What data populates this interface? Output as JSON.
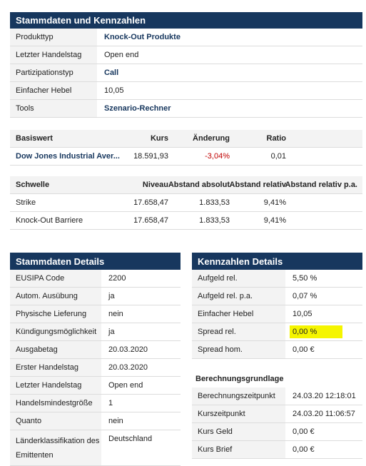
{
  "stammdaten_kennzahlen": {
    "title": "Stammdaten und Kennzahlen",
    "rows": [
      [
        "Produkttyp",
        "Knock-Out Produkte"
      ],
      [
        "Letzter Handelstag",
        "Open end"
      ],
      [
        "Partizipationstyp",
        "Call"
      ],
      [
        "Einfacher Hebel",
        "10,05"
      ],
      [
        "Tools",
        "Szenario-Rechner"
      ]
    ]
  },
  "basiswert_table": {
    "header": [
      "Basiswert",
      "Kurs",
      "Änderung",
      "Ratio"
    ],
    "rows": [
      [
        "Dow Jones Industrial Aver...",
        "18.591,93",
        "-3,04%",
        "0,01"
      ]
    ]
  },
  "schwelle_table": {
    "header": [
      "Schwelle",
      "Niveau",
      "Abstand absolut",
      "Abstand relativ",
      "Abstand relativ p.a."
    ],
    "rows": [
      [
        "Strike",
        "17.658,47",
        "1.833,53",
        "9,41%",
        ""
      ],
      [
        "Knock-Out Barriere",
        "17.658,47",
        "1.833,53",
        "9,41%",
        ""
      ]
    ]
  },
  "stammdaten_details": {
    "title": "Stammdaten Details",
    "rows": [
      [
        "EUSIPA Code",
        "2200"
      ],
      [
        "Autom. Ausübung",
        "ja"
      ],
      [
        "Physische Lieferung",
        "nein"
      ],
      [
        "Kündigungsmöglichkeit",
        "ja"
      ],
      [
        "Ausgabetag",
        "20.03.2020"
      ],
      [
        "Erster Handelstag",
        "20.03.2020"
      ],
      [
        "Letzter Handelstag",
        "Open end"
      ],
      [
        "Handelsmindestgröße",
        "1"
      ],
      [
        "Quanto",
        "nein"
      ],
      [
        "Länderklassifikation des Emittenten",
        "Deutschland"
      ]
    ]
  },
  "kennzahlen_details": {
    "title": "Kennzahlen Details",
    "rows": [
      [
        "Aufgeld rel.",
        "5,50 %"
      ],
      [
        "Aufgeld rel. p.a.",
        "0,07 %"
      ],
      [
        "Einfacher Hebel",
        "10,05"
      ],
      [
        "Spread rel.",
        "0,00 %"
      ],
      [
        "Spread hom.",
        "0,00 €"
      ]
    ]
  },
  "berechnungsgrundlage": {
    "title": "Berechnungsgrundlage",
    "rows": [
      [
        "Berechnungszeitpunkt",
        "24.03.20 12:18:01"
      ],
      [
        "Kurszeitpunkt",
        "24.03.20 11:06:57"
      ],
      [
        "Kurs Geld",
        "0,00 €"
      ],
      [
        "Kurs Brief",
        "0,00 €"
      ]
    ]
  }
}
